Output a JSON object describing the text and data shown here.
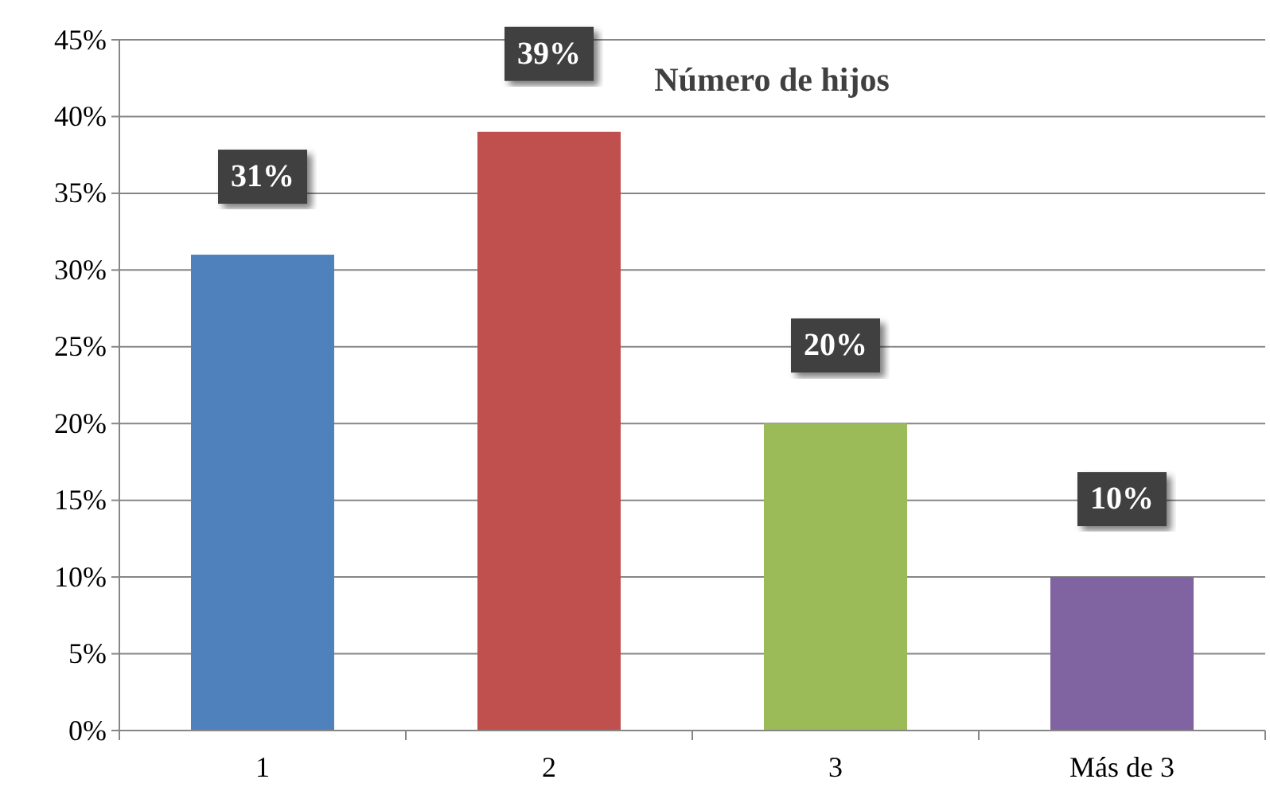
{
  "chart_data": {
    "type": "bar",
    "title": "Número de hijos",
    "categories": [
      "1",
      "2",
      "3",
      "Más de 3"
    ],
    "values": [
      31,
      39,
      20,
      10
    ],
    "colors": [
      "#4f81bd",
      "#c0504d",
      "#9bbb59",
      "#8064a2"
    ],
    "value_labels": [
      "31%",
      "39%",
      "20%",
      "10%"
    ],
    "ylim": [
      0,
      45
    ],
    "yticks": [
      {
        "value": 0,
        "label": "0%"
      },
      {
        "value": 5,
        "label": "5%"
      },
      {
        "value": 10,
        "label": "10%"
      },
      {
        "value": 15,
        "label": "15%"
      },
      {
        "value": 20,
        "label": "20%"
      },
      {
        "value": 25,
        "label": "25%"
      },
      {
        "value": 30,
        "label": "30%"
      },
      {
        "value": 35,
        "label": "35%"
      },
      {
        "value": 40,
        "label": "40%"
      },
      {
        "value": 45,
        "label": "45%"
      }
    ],
    "grid": "y"
  }
}
